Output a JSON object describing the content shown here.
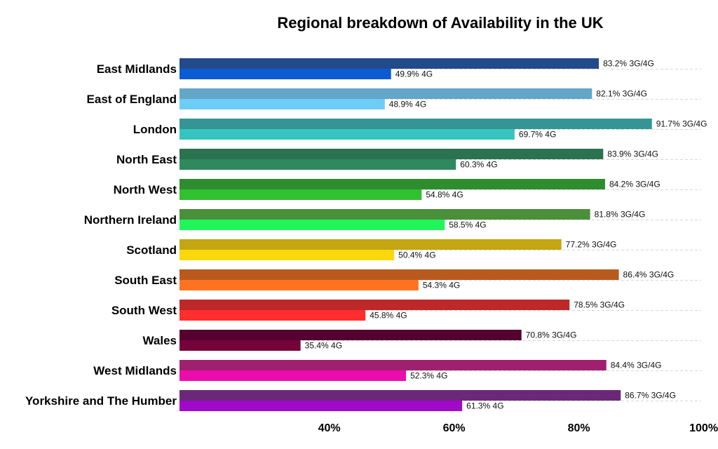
{
  "chart_data": {
    "type": "bar",
    "orientation": "horizontal",
    "title": "Regional breakdown of Availability in the UK",
    "xlabel": "",
    "ylabel": "",
    "xlim": [
      16,
      101
    ],
    "xticks": [
      40,
      60,
      80,
      100
    ],
    "xtick_labels": [
      "40%",
      "60%",
      "80%",
      "100%"
    ],
    "grid": "dashed horizontal guides",
    "legend": "none",
    "categories": [
      "East Midlands",
      "East of England",
      "London",
      "North East",
      "North West",
      "Northern Ireland",
      "Scotland",
      "South East",
      "South West",
      "Wales",
      "West Midlands",
      "Yorkshire and The Humber"
    ],
    "series": [
      {
        "key": "3g4g",
        "values": [
          83.2,
          82.1,
          91.7,
          83.9,
          84.2,
          81.8,
          77.2,
          86.4,
          78.5,
          70.8,
          84.4,
          86.7
        ],
        "labels": [
          "83.2% 3G/4G",
          "82.1% 3G/4G",
          "91.7% 3G/4G",
          "83.9% 3G/4G",
          "84.2% 3G/4G",
          "81.8% 3G/4G",
          "77.2% 3G/4G",
          "86.4% 3G/4G",
          "78.5% 3G/4G",
          "70.8% 3G/4G",
          "84.4% 3G/4G",
          "86.7% 3G/4G"
        ],
        "colors": [
          "#234a8a",
          "#62a6c8",
          "#359594",
          "#2a7250",
          "#2e8d2e",
          "#4a8f3a",
          "#c3a611",
          "#b85a1e",
          "#bf2828",
          "#560030",
          "#a02070",
          "#6b2878"
        ]
      },
      {
        "key": "4g",
        "values": [
          49.9,
          48.9,
          69.7,
          60.3,
          54.8,
          58.5,
          50.4,
          54.3,
          45.8,
          35.4,
          52.3,
          61.3
        ],
        "labels": [
          "49.9% 4G",
          "48.9% 4G",
          "69.7% 4G",
          "60.3% 4G",
          "54.8% 4G",
          "58.5% 4G",
          "50.4% 4G",
          "54.3% 4G",
          "45.8% 4G",
          "35.4% 4G",
          "52.3% 4G",
          "61.3% 4G"
        ],
        "colors": [
          "#0b5bd3",
          "#6dcdf6",
          "#36c4c0",
          "#2e8a5e",
          "#30c030",
          "#20f55a",
          "#fbd80c",
          "#ff7220",
          "#ff2e2e",
          "#76023a",
          "#ec0cac",
          "#a009c8"
        ]
      }
    ]
  }
}
